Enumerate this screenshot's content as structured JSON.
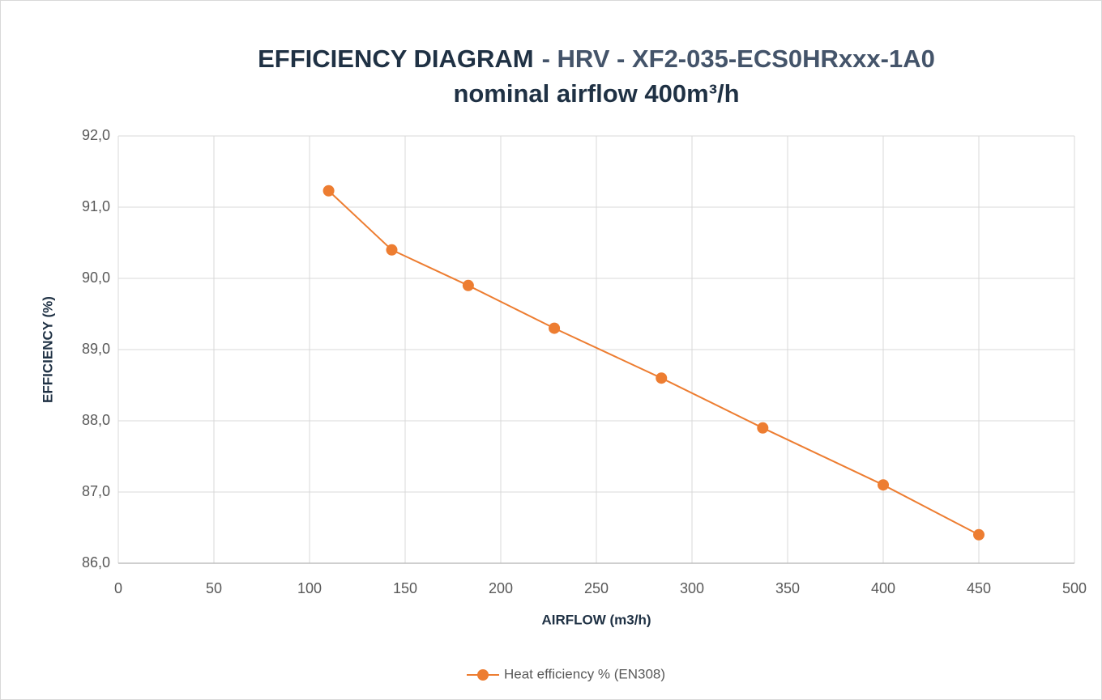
{
  "chart_data": {
    "type": "line",
    "title": {
      "main": "EFFICIENCY DIAGRAM",
      "detail": "- HRV - XF2-035-ECS0HRxxx-1A0"
    },
    "subtitle": "nominal airflow 400m³/h",
    "x_label": "AIRFLOW (m3/h)",
    "y_label": "EFFICIENCY (%)",
    "x": [
      110,
      143,
      183,
      228,
      284,
      337,
      400,
      450
    ],
    "series": [
      {
        "name": "Heat efficiency % (EN308)",
        "color": "#ed7d31",
        "values": [
          91.23,
          90.4,
          89.9,
          89.3,
          88.6,
          87.9,
          87.1,
          86.4
        ]
      }
    ],
    "xlim": [
      0,
      500
    ],
    "xticks": [
      0,
      50,
      100,
      150,
      200,
      250,
      300,
      350,
      400,
      450,
      500
    ],
    "ylim": [
      86,
      92
    ],
    "yticks": [
      {
        "value": 86,
        "label": "86,0"
      },
      {
        "value": 87,
        "label": "87,0"
      },
      {
        "value": 88,
        "label": "88,0"
      },
      {
        "value": 89,
        "label": "89,0"
      },
      {
        "value": 90,
        "label": "90,0"
      },
      {
        "value": 91,
        "label": "91,0"
      },
      {
        "value": 92,
        "label": "92,0"
      }
    ],
    "grid": true,
    "legend": "bottom"
  }
}
